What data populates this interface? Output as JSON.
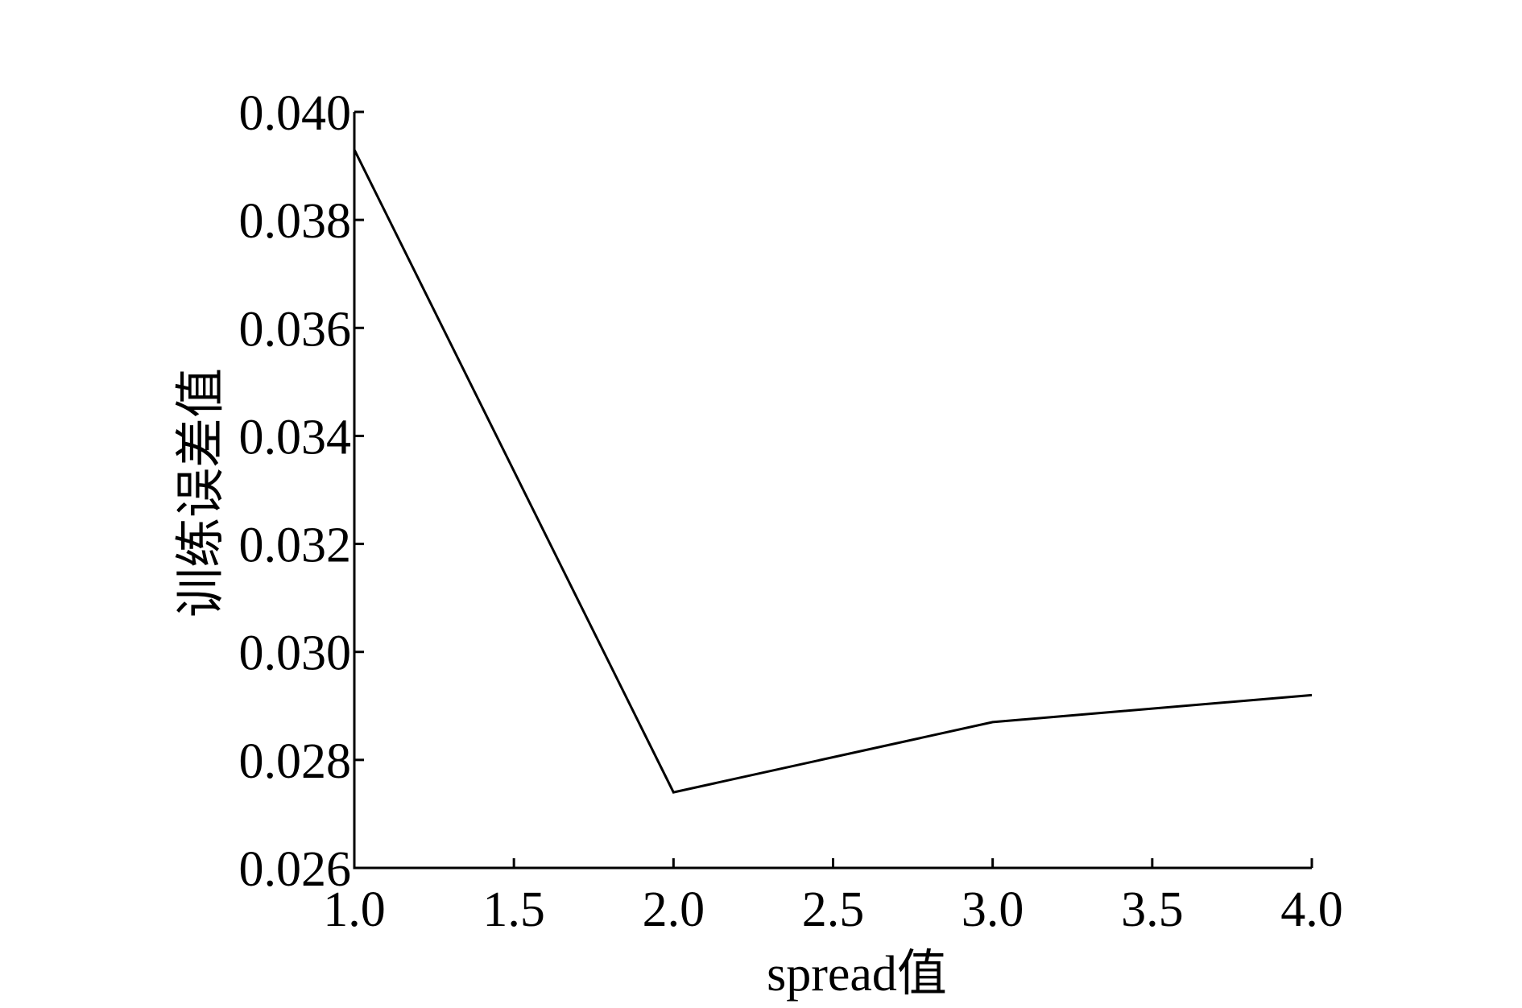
{
  "chart_data": {
    "type": "line",
    "x_label": "spread值",
    "y_label": "训练误差值",
    "x": [
      1,
      2,
      3,
      4
    ],
    "values": [
      0.0393,
      0.0274,
      0.0287,
      0.0292
    ],
    "color": "#000000",
    "xlim": [
      1,
      4
    ],
    "xticks": [
      {
        "value": 1,
        "label": "1.0"
      },
      1.5,
      {
        "value": 2,
        "label": "2.0"
      },
      2.5,
      {
        "value": 3,
        "label": "3.0"
      },
      3.5,
      {
        "value": 4,
        "label": "4.0"
      }
    ],
    "ylim": [
      0.026,
      0.04
    ],
    "yticks": [
      {
        "value": 0.026,
        "label": "0.026"
      },
      0.028,
      {
        "value": 0.03,
        "label": "0.030"
      },
      0.032,
      0.034,
      0.036,
      0.038,
      {
        "value": 0.04,
        "label": "0.040"
      }
    ],
    "grid": false
  }
}
